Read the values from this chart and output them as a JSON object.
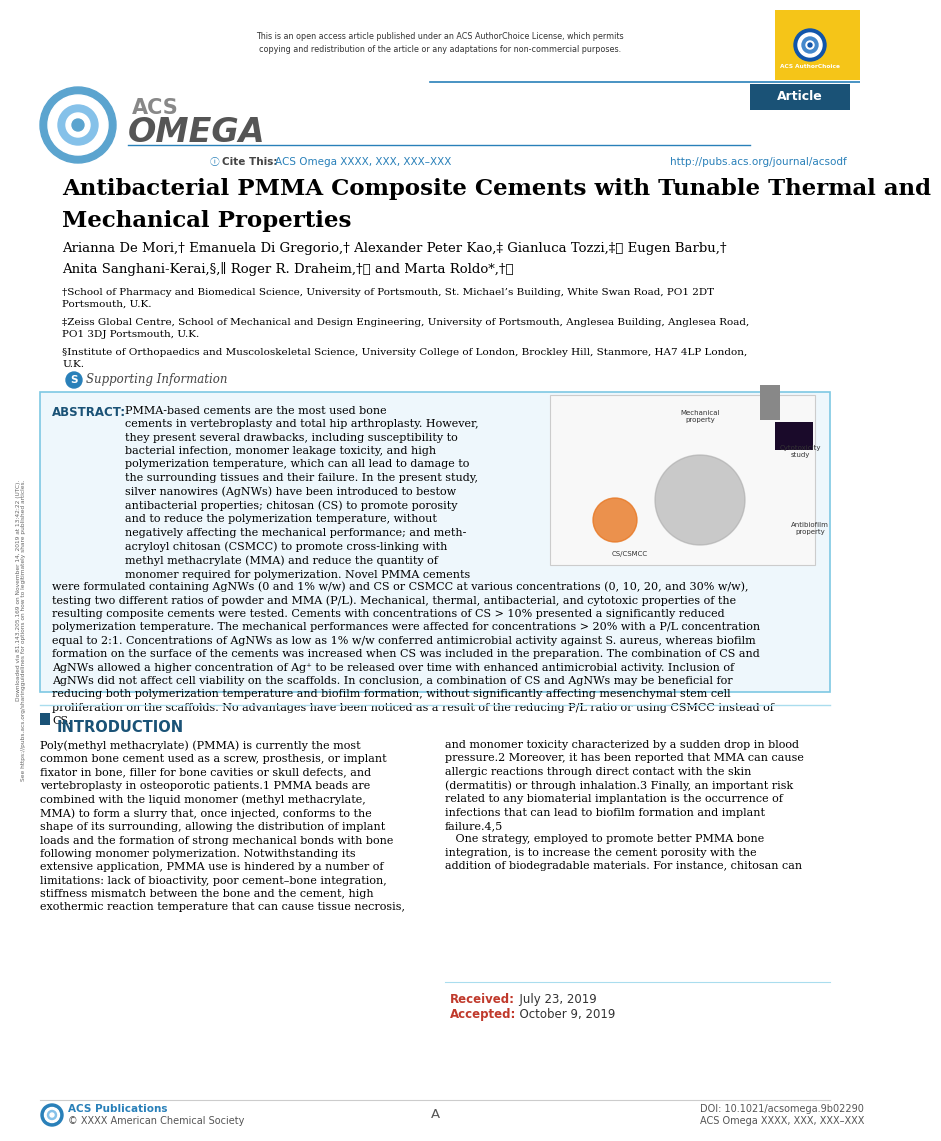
{
  "background_color": "#ffffff",
  "page_width": 8.5,
  "page_height": 11.21,
  "top_bar_text": "This is an open access article published under an ACS AuthorChoice License, which permits\ncopying and redistribution of the article or any adaptations for non-commercial purposes.",
  "cite_text": "Cite This: ACS Omega XXXX, XXX, XXX–XXX",
  "url_text": "http://pubs.acs.org/journal/acsodf",
  "title_line1": "Antibacterial PMMA Composite Cements with Tunable Thermal and",
  "title_line2": "Mechanical Properties",
  "authors_line1": "Arianna De Mori,† Emanuela Di Gregorio,† Alexander Peter Kao,‡ Gianluca Tozzi,‡ⓘ Eugen Barbu,†",
  "authors_line2": "Anita Sanghani-Kerai,§,∥ Roger R. Draheim,†ⓘ and Marta Roldo*,†ⓘ",
  "affil1": "†School of Pharmacy and Biomedical Science, University of Portsmouth, St. Michael’s Building, White Swan Road, PO1 2DT",
  "affil1b": "Portsmouth, U.K.",
  "affil2": "‡Zeiss Global Centre, School of Mechanical and Design Engineering, University of Portsmouth, Anglesea Building, Anglesea Road,",
  "affil2b": "PO1 3DJ Portsmouth, U.K.",
  "affil3": "§Institute of Orthopaedics and Muscoloskeletal Science, University College of London, Brockley Hill, Stanmore, HA7 4LP London,",
  "affil3b": "U.K.",
  "supporting_label": "Supporting Information",
  "abstract_header": "ABSTRACT:",
  "abstract_left": "PMMA-based cements are the most used bone\ncements in vertebroplasty and total hip arthroplasty. However,\nthey present several drawbacks, including susceptibility to\nbacterial infection, monomer leakage toxicity, and high\npolymerization temperature, which can all lead to damage to\nthe surrounding tissues and their failure. In the present study,\nsilver nanowires (AgNWs) have been introduced to bestow\nantibacterial properties; chitosan (CS) to promote porosity\nand to reduce the polymerization temperature, without\nnegatively affecting the mechanical performance; and meth-\nacryloyl chitosan (CSMCC) to promote cross-linking with\nmethyl methacrylate (MMA) and reduce the quantity of\nmonomer required for polymerization. Novel PMMA cements",
  "abstract_full": "were formulated containing AgNWs (0 and 1% w/w) and CS or CSMCC at various concentrations (0, 10, 20, and 30% w/w),\ntesting two different ratios of powder and MMA (P/L). Mechanical, thermal, antibacterial, and cytotoxic properties of the\nresulting composite cements were tested. Cements with concentrations of CS > 10% presented a significantly reduced\npolymerization temperature. The mechanical performances were affected for concentrations > 20% with a P/L concentration\nequal to 2:1. Concentrations of AgNWs as low as 1% w/w conferred antimicrobial activity against S. aureus, whereas biofilm\nformation on the surface of the cements was increased when CS was included in the preparation. The combination of CS and\nAgNWs allowed a higher concentration of Ag⁺ to be released over time with enhanced antimicrobial activity. Inclusion of\nAgNWs did not affect cell viability on the scaffolds. In conclusion, a combination of CS and AgNWs may be beneficial for\nreducing both polymerization temperature and biofilm formation, without significantly affecting mesenchymal stem cell\nproliferation on the scaffolds. No advantages have been noticed as a result of the reducing P/L ratio or using CSMCC instead of\nCS.",
  "intro_header": "INTRODUCTION",
  "intro_col1_text": "Poly(methyl methacrylate) (PMMA) is currently the most\ncommon bone cement used as a screw, prosthesis, or implant\nfixator in bone, filler for bone cavities or skull defects, and\nvertebroplasty in osteoporotic patients.1 PMMA beads are\ncombined with the liquid monomer (methyl methacrylate,\nMMA) to form a slurry that, once injected, conforms to the\nshape of its surrounding, allowing the distribution of implant\nloads and the formation of strong mechanical bonds with bone\nfollowing monomer polymerization. Notwithstanding its\nextensive application, PMMA use is hindered by a number of\nlimitations: lack of bioactivity, poor cement–bone integration,\nstiffness mismatch between the bone and the cement, high\nexothermic reaction temperature that can cause tissue necrosis,",
  "intro_col2_text": "and monomer toxicity characterized by a sudden drop in blood\npressure.2 Moreover, it has been reported that MMA can cause\nallergic reactions through direct contact with the skin\n(dermatitis) or through inhalation.3 Finally, an important risk\nrelated to any biomaterial implantation is the occurrence of\ninfections that can lead to biofilm formation and implant\nfailure.4,5\n   One strategy, employed to promote better PMMA bone\nintegration, is to increase the cement porosity with the\naddition of biodegradable materials. For instance, chitosan can",
  "received_label": "Received:",
  "received_date": "  July 23, 2019",
  "accepted_label": "Accepted:",
  "accepted_date": "  October 9, 2019",
  "footer_pub": "ACS Publications",
  "footer_copy": "© XXXX American Chemical Society",
  "footer_page": "A",
  "footer_doi": "DOI: 10.1021/acsomega.9b02290",
  "footer_journal": "ACS Omega XXXX, XXX, XXX–XXX",
  "sidebar_line1": "Downloaded via 81.143.205.169 on November 14, 2019 at 13:42:22 (UTC).",
  "sidebar_line2": "See https://pubs.acs.org/sharingguidelines for options on how to legitimately share published articles.",
  "abstract_bg": "#eef7fc",
  "abstract_border": "#7ec8e3",
  "gold_color": "#f5c518",
  "dark_blue": "#1a5276",
  "medium_blue": "#2980b9",
  "light_blue": "#85c1e9"
}
